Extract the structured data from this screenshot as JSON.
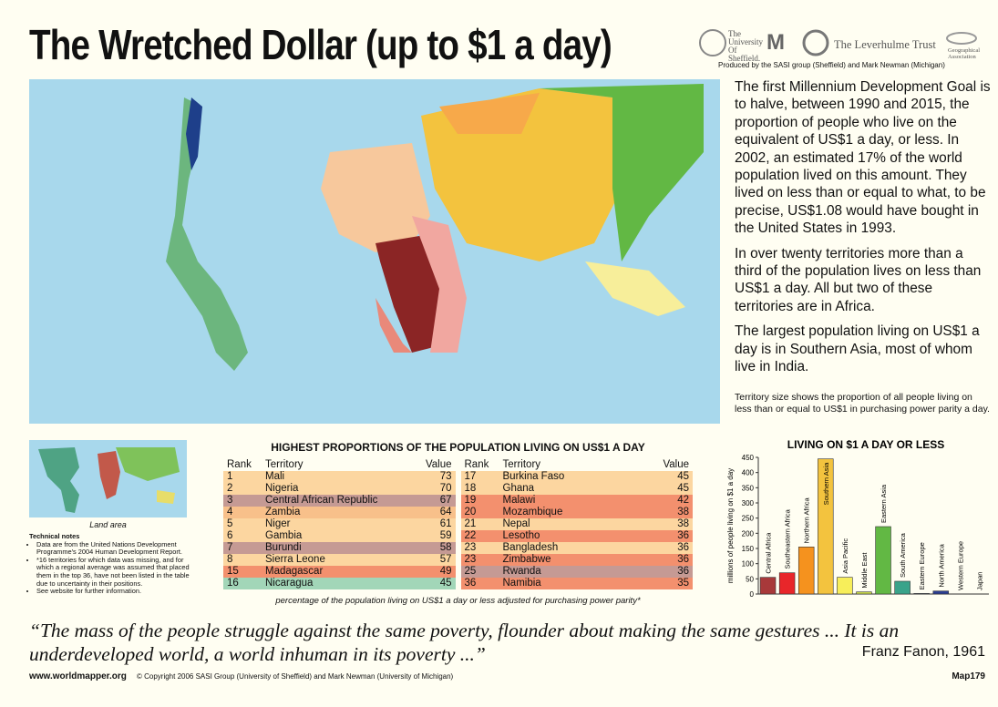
{
  "header": {
    "title": "The Wretched Dollar (up to $1 a day)",
    "logos": [
      "The University Of Sheffield.",
      "The Leverhulme Trust",
      "Geographical Association"
    ],
    "credit": "Produced by the SASI group (Sheffield) and Mark Newman (Michigan)"
  },
  "description": {
    "paragraphs": [
      "The first Millennium Development Goal is to halve, between 1990 and 2015, the proportion of people who live on the equivalent of US$1 a day, or less. In 2002, an estimated 17% of the world population lived on this amount. They lived on less than or equal to what, to be precise, US$1.08 would have bought in the United States in 1993.",
      "In over twenty territories more than a third of the population lives on less than US$1 a day. All but two of these territories are in Africa.",
      "The largest population living on US$1 a day is in Southern Asia, most of whom live in India."
    ],
    "note": "Territory size shows the proportion of all people living on less than or equal to US$1 in purchasing power parity a day."
  },
  "inset": {
    "label": "Land area",
    "notes_title": "Technical notes",
    "notes": [
      "Data are from the United Nations Development Programme's 2004 Human Development Report.",
      "*16 territories for which data was missing, and for which a regional average was assumed that placed them in the top 36, have not been listed in the table due to uncertainty in their positions.",
      "See website for further information."
    ]
  },
  "table": {
    "title": "HIGHEST PROPORTIONS OF THE POPULATION LIVING ON US$1 A DAY",
    "columns": [
      "Rank",
      "Territory",
      "Value"
    ],
    "left": [
      {
        "rank": "1",
        "territory": "Mali",
        "value": "73",
        "color": "#fcd6a0"
      },
      {
        "rank": "2",
        "territory": "Nigeria",
        "value": "70",
        "color": "#fcd6a0"
      },
      {
        "rank": "3",
        "territory": "Central African Republic",
        "value": "67",
        "color": "#c59a94"
      },
      {
        "rank": "4",
        "territory": "Zambia",
        "value": "64",
        "color": "#f8c08a"
      },
      {
        "rank": "5",
        "territory": "Niger",
        "value": "61",
        "color": "#fcd6a0"
      },
      {
        "rank": "6",
        "territory": "Gambia",
        "value": "59",
        "color": "#fcd6a0"
      },
      {
        "rank": "7",
        "territory": "Burundi",
        "value": "58",
        "color": "#c59a94"
      },
      {
        "rank": "8",
        "territory": "Sierra Leone",
        "value": "57",
        "color": "#fcd6a0"
      },
      {
        "rank": "15",
        "territory": "Madagascar",
        "value": "49",
        "color": "#f3906e"
      },
      {
        "rank": "16",
        "territory": "Nicaragua",
        "value": "45",
        "color": "#a2d6b8"
      }
    ],
    "right": [
      {
        "rank": "17",
        "territory": "Burkina Faso",
        "value": "45",
        "color": "#fcd6a0"
      },
      {
        "rank": "18",
        "territory": "Ghana",
        "value": "45",
        "color": "#fcd6a0"
      },
      {
        "rank": "19",
        "territory": "Malawi",
        "value": "42",
        "color": "#f3906e"
      },
      {
        "rank": "20",
        "territory": "Mozambique",
        "value": "38",
        "color": "#f3906e"
      },
      {
        "rank": "21",
        "territory": "Nepal",
        "value": "38",
        "color": "#fcd6a0"
      },
      {
        "rank": "22",
        "territory": "Lesotho",
        "value": "36",
        "color": "#f3906e"
      },
      {
        "rank": "23",
        "territory": "Bangladesh",
        "value": "36",
        "color": "#fcd6a0"
      },
      {
        "rank": "23",
        "territory": "Zimbabwe",
        "value": "36",
        "color": "#f3906e"
      },
      {
        "rank": "25",
        "territory": "Rwanda",
        "value": "36",
        "color": "#c59a94"
      },
      {
        "rank": "36",
        "territory": "Namibia",
        "value": "35",
        "color": "#f3906e"
      }
    ],
    "caption": "percentage of the population living on US$1 a day or less adjusted for purchasing power parity*"
  },
  "chart_data": {
    "type": "bar",
    "title": "LIVING ON $1 A DAY OR LESS",
    "ylabel": "millions of people living on $1 a day",
    "categories": [
      "Central Africa",
      "Southeastern Africa",
      "Northern Africa",
      "Southern Asia",
      "Asia Pacific",
      "Middle East",
      "Eastern Asia",
      "South America",
      "Eastern Europe",
      "North America",
      "Western Europe",
      "Japan"
    ],
    "values": [
      55,
      70,
      155,
      445,
      55,
      7,
      222,
      42,
      2,
      10,
      0,
      0
    ],
    "colors": [
      "#a8393a",
      "#e8262a",
      "#f5921e",
      "#f3c33e",
      "#f7ee5a",
      "#c8d84a",
      "#62b844",
      "#3aa38a",
      "#7c8fc8",
      "#2c3e91",
      "#5a6fb5",
      "#c03c8c"
    ],
    "ylim": [
      0,
      450
    ],
    "yticks": [
      0,
      50,
      100,
      150,
      200,
      250,
      300,
      350,
      400,
      450
    ]
  },
  "quote": {
    "text": "“The mass of the people struggle against the same poverty, flounder about making the same gestures ... It is an underdeveloped world, a world inhuman in its poverty ...”",
    "author": "Franz Fanon, 1961"
  },
  "footer": {
    "site": "www.worldmapper.org",
    "copyright": "© Copyright 2006 SASI Group (University of Sheffield) and Mark Newman (University of Michigan)",
    "map": "Map179"
  }
}
